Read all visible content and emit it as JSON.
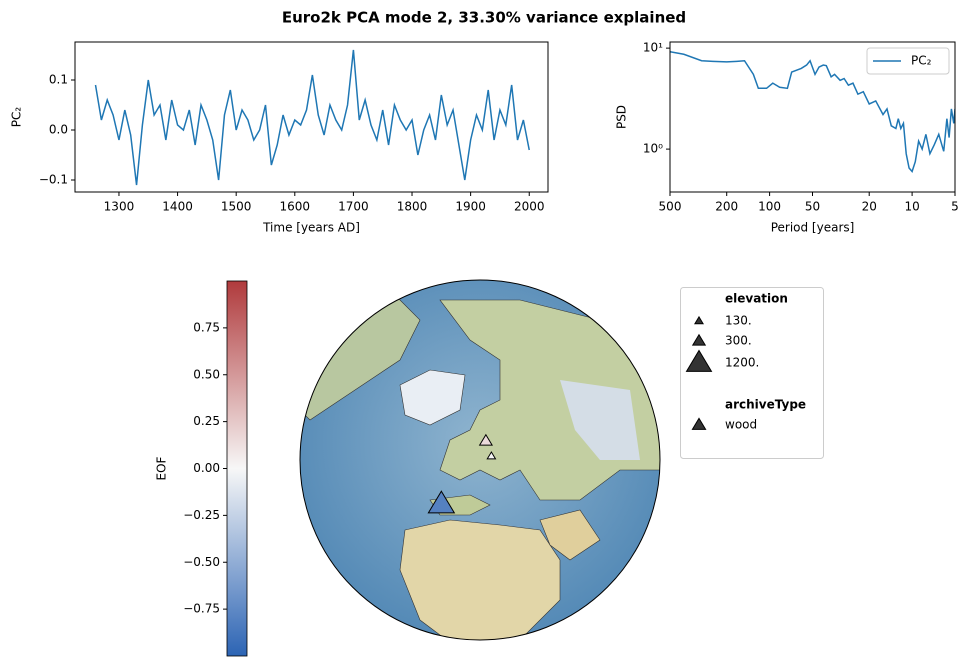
{
  "title": "Euro2k PCA mode 2, 33.30% variance explained",
  "chart_data": [
    {
      "type": "line",
      "xlabel": "Time [years AD]",
      "ylabel": "PC₂",
      "color": "#1f77b4",
      "x": [
        1260,
        1270,
        1280,
        1290,
        1300,
        1310,
        1320,
        1330,
        1340,
        1350,
        1360,
        1370,
        1380,
        1390,
        1400,
        1410,
        1420,
        1430,
        1440,
        1450,
        1460,
        1470,
        1480,
        1490,
        1500,
        1510,
        1520,
        1530,
        1540,
        1550,
        1560,
        1570,
        1580,
        1590,
        1600,
        1610,
        1620,
        1630,
        1640,
        1650,
        1660,
        1670,
        1680,
        1690,
        1700,
        1710,
        1720,
        1730,
        1740,
        1750,
        1760,
        1770,
        1780,
        1790,
        1800,
        1810,
        1820,
        1830,
        1840,
        1850,
        1860,
        1870,
        1880,
        1890,
        1900,
        1910,
        1920,
        1930,
        1940,
        1950,
        1960,
        1970,
        1980,
        1990,
        2000
      ],
      "values": [
        0.09,
        0.02,
        0.06,
        0.03,
        -0.02,
        0.04,
        -0.01,
        -0.11,
        0.01,
        0.1,
        0.03,
        0.05,
        -0.02,
        0.06,
        0.01,
        0.0,
        0.04,
        -0.03,
        0.05,
        0.02,
        -0.02,
        -0.1,
        0.03,
        0.08,
        0.0,
        0.04,
        0.02,
        -0.02,
        0.0,
        0.05,
        -0.07,
        -0.03,
        0.03,
        -0.01,
        0.02,
        0.01,
        0.04,
        0.11,
        0.03,
        -0.01,
        0.05,
        0.02,
        0.0,
        0.05,
        0.16,
        0.02,
        0.06,
        0.01,
        -0.02,
        0.04,
        -0.03,
        0.05,
        0.02,
        0.0,
        0.02,
        -0.05,
        0.0,
        0.03,
        -0.02,
        0.07,
        0.01,
        0.04,
        -0.03,
        -0.1,
        -0.02,
        0.03,
        0.0,
        0.08,
        -0.02,
        0.04,
        0.01,
        0.09,
        -0.02,
        0.02,
        -0.04
      ],
      "xlim": [
        1225,
        2032
      ],
      "xticks": [
        1300,
        1400,
        1500,
        1600,
        1700,
        1800,
        1900,
        2000
      ],
      "ylim": [
        -0.124,
        0.176
      ],
      "yticks": [
        {
          "value": -0.1,
          "label": "−0.1"
        },
        {
          "value": 0,
          "label": "0.0"
        },
        {
          "value": 0.1,
          "label": "0.1"
        }
      ]
    },
    {
      "type": "line",
      "xlabel": "Period [years]",
      "ylabel": "PSD",
      "xlog": true,
      "ylog": true,
      "legend": "upper right",
      "x": [
        500,
        400,
        300,
        250,
        200,
        170,
        150,
        130,
        120,
        105,
        95,
        85,
        75,
        70,
        60,
        55,
        52,
        48,
        45,
        42,
        40,
        37,
        35,
        32,
        30,
        28,
        26,
        24,
        22,
        20,
        18,
        16,
        15,
        14,
        13,
        12.5,
        12,
        11.5,
        11,
        10.5,
        10,
        9.5,
        9,
        8.5,
        8,
        7.5,
        7,
        6.5,
        6,
        5.7,
        5.5,
        5.3,
        5.1,
        5
      ],
      "series": [
        {
          "name": "PC₂",
          "color": "#1f77b4",
          "values": [
            9.2,
            8.7,
            7.5,
            7.4,
            7.3,
            7.4,
            7.5,
            5.5,
            4.0,
            4.0,
            4.5,
            4.1,
            4.0,
            5.8,
            6.3,
            6.8,
            7.5,
            5.5,
            6.5,
            6.8,
            6.7,
            5.2,
            5.5,
            4.8,
            5.0,
            4.3,
            4.5,
            3.5,
            3.7,
            2.8,
            3.0,
            2.2,
            2.5,
            1.7,
            1.6,
            2.0,
            1.6,
            1.8,
            0.9,
            0.65,
            0.6,
            0.75,
            1.2,
            1.0,
            1.4,
            0.9,
            1.1,
            1.4,
            0.95,
            2.0,
            1.3,
            2.5,
            1.8,
            2.5
          ]
        }
      ],
      "xlim": [
        500,
        5
      ],
      "xticks": [
        500,
        200,
        100,
        50,
        20,
        10,
        5
      ],
      "ylim": [
        0.376,
        11.5
      ],
      "yticks": [
        {
          "value": 1,
          "label": "10⁰"
        },
        {
          "value": 10,
          "label": "10¹"
        }
      ]
    },
    {
      "type": "map",
      "colorbar_label": "EOF",
      "clim": [
        -1,
        1
      ],
      "cmap": [
        "#2c64b4",
        "#f7f7f7",
        "#b03a3c"
      ],
      "cticks": [
        0.75,
        {
          "value": 0.5,
          "label": "0.50"
        },
        {
          "value": 0.25,
          "label": "0.25"
        },
        {
          "value": 0,
          "label": "0.00"
        },
        {
          "value": -0.25,
          "label": "−0.25"
        },
        {
          "value": -0.5,
          "label": "−0.50"
        },
        {
          "value": -0.75,
          "label": "−0.75"
        }
      ],
      "sites": [
        {
          "lat": 46,
          "lon": 8,
          "eof": -0.8,
          "elevation": 1300,
          "archiveType": "wood"
        },
        {
          "lat": 68,
          "lon": 31,
          "eof": 0.15,
          "elevation": 300,
          "archiveType": "wood"
        },
        {
          "lat": 63,
          "lon": 34,
          "eof": 0.0,
          "elevation": 130,
          "archiveType": "wood"
        }
      ],
      "size_legend_title": "elevation",
      "size_legend": [
        {
          "value": 130,
          "label": "130."
        },
        {
          "value": 300,
          "label": "300."
        },
        {
          "value": 1200,
          "label": "1200."
        }
      ],
      "type_legend_title": "archiveType",
      "type_legend": [
        "wood"
      ]
    }
  ]
}
